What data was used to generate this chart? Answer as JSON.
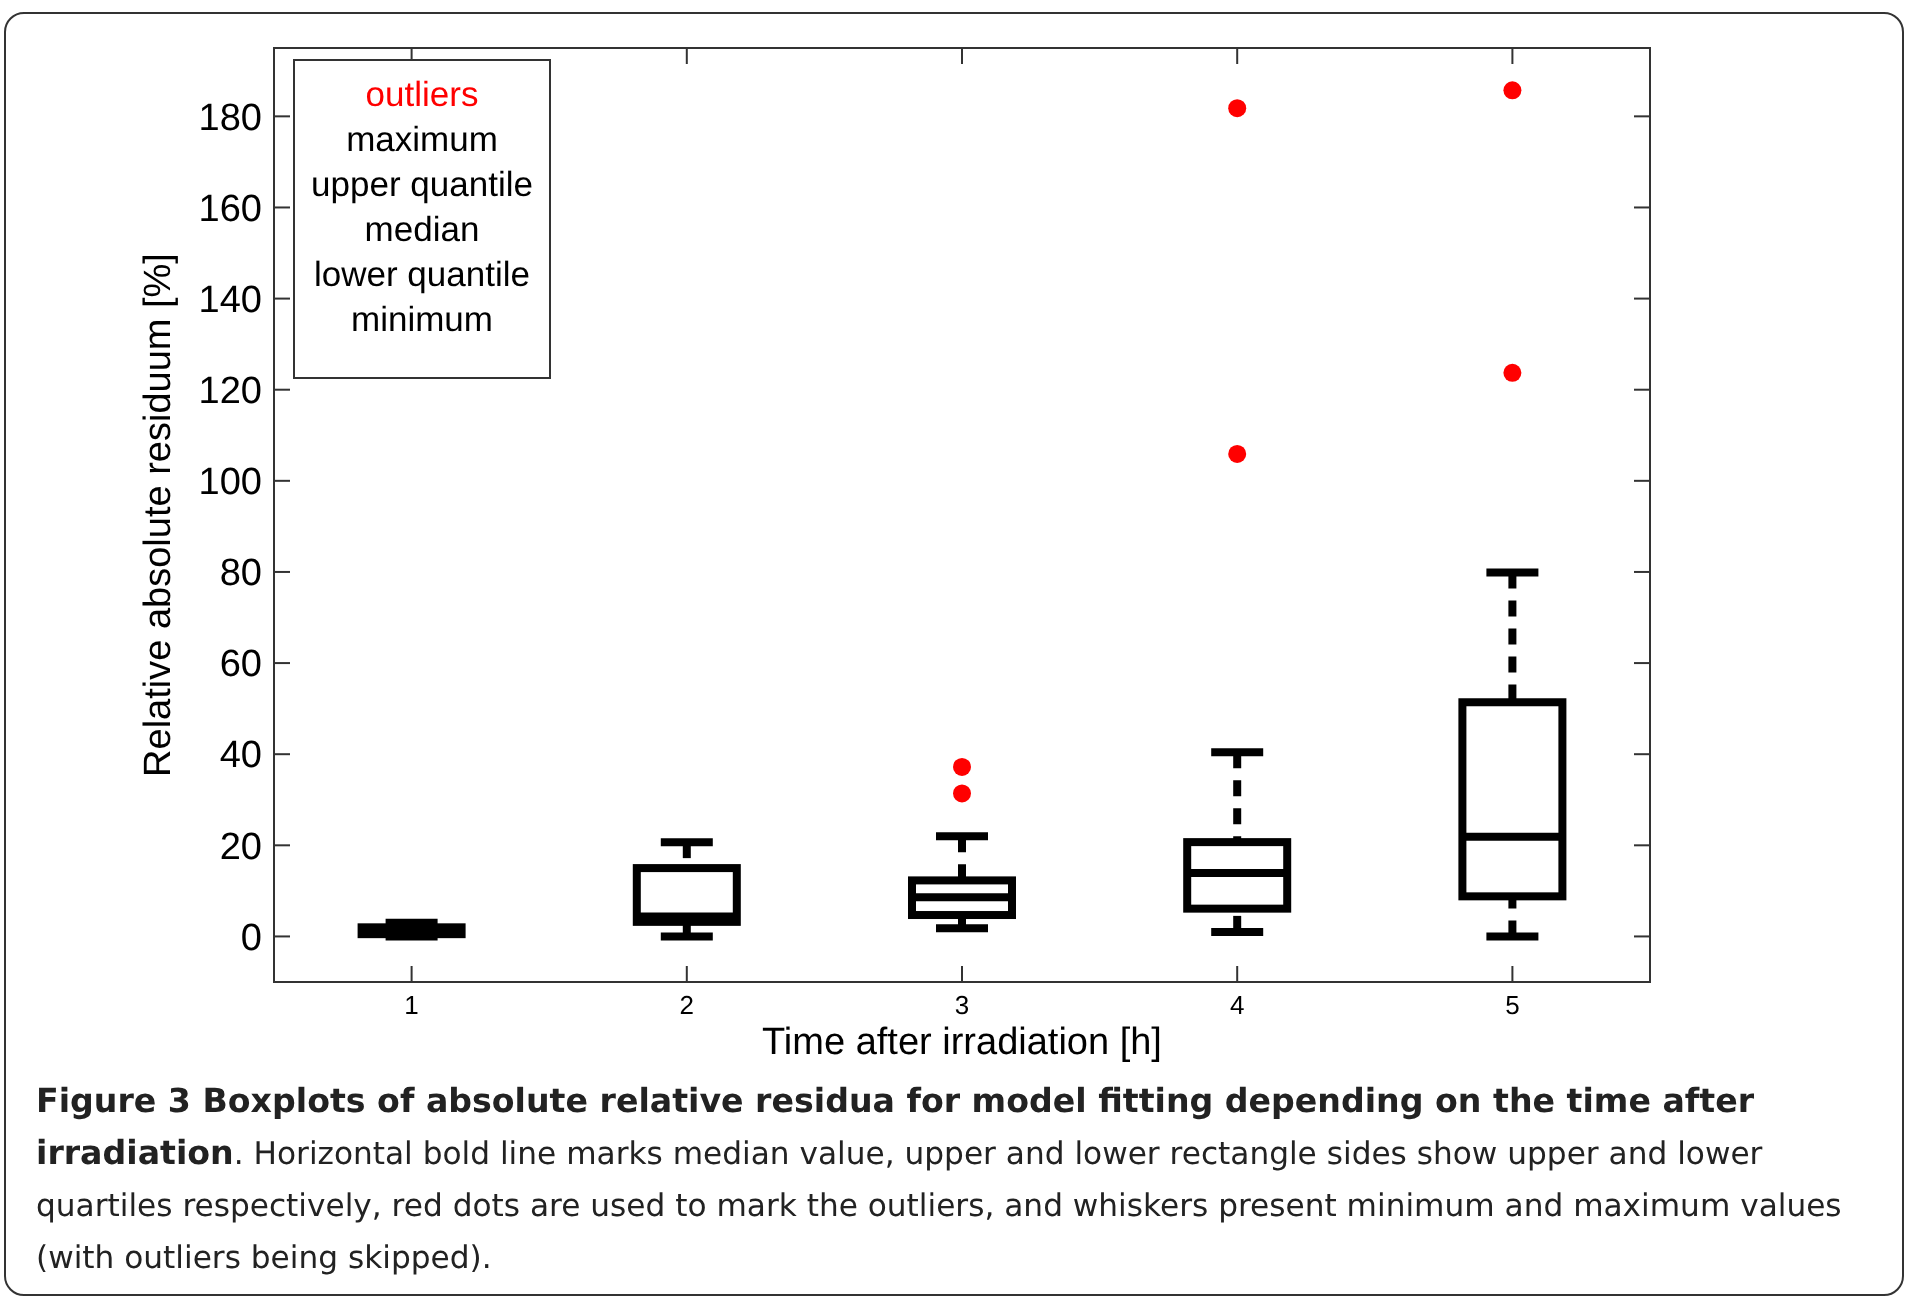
{
  "chart_data": {
    "type": "box",
    "xlabel": "Time after irradiation [h]",
    "ylabel": "Relative absolute residuum [%]",
    "categories": [
      "1",
      "2",
      "3",
      "4",
      "5"
    ],
    "ylim": [
      -10,
      195
    ],
    "yticks": [
      0,
      20,
      40,
      60,
      80,
      100,
      120,
      140,
      160,
      180
    ],
    "grid": false,
    "legend": "top left",
    "series": [
      {
        "color": "#000000",
        "line_style": "dashed",
        "boxes": [
          {
            "low": 0,
            "q1": 0.5,
            "median": 1,
            "q3": 2,
            "high": 3
          },
          {
            "low": 0,
            "q1": 3.2,
            "median": 4.4,
            "q3": 15,
            "high": 20.7
          },
          {
            "low": 1.8,
            "q1": 4.7,
            "median": 8.6,
            "q3": 12.3,
            "high": 22
          },
          {
            "low": 1,
            "q1": 6.1,
            "median": 13.9,
            "q3": 20.7,
            "high": 40.4
          },
          {
            "low": 0,
            "q1": 8.8,
            "median": 21.9,
            "q3": 51.4,
            "high": 79.9
          }
        ]
      },
      {
        "type": "scatter",
        "name": "outliers",
        "color": "#ff0000",
        "marker": "circle",
        "x": [
          "3",
          "3",
          "4",
          "4",
          "5",
          "5"
        ],
        "values": [
          37.2,
          31.4,
          181.8,
          105.9,
          185.7,
          123.7
        ]
      }
    ],
    "annotations": [
      "maximum",
      "upper quantile",
      "median",
      "lower quantile",
      "minimum",
      "Figure 3 Boxplots of absolute relative residua for model fitting depending on the time after irradiation",
      ". Horizontal bold line marks median value, upper and lower rectangle sides show upper and lower quartiles respectively, red dots are used to mark the outliers, and whiskers present minimum and maximum values (with outliers being skipped)."
    ]
  }
}
